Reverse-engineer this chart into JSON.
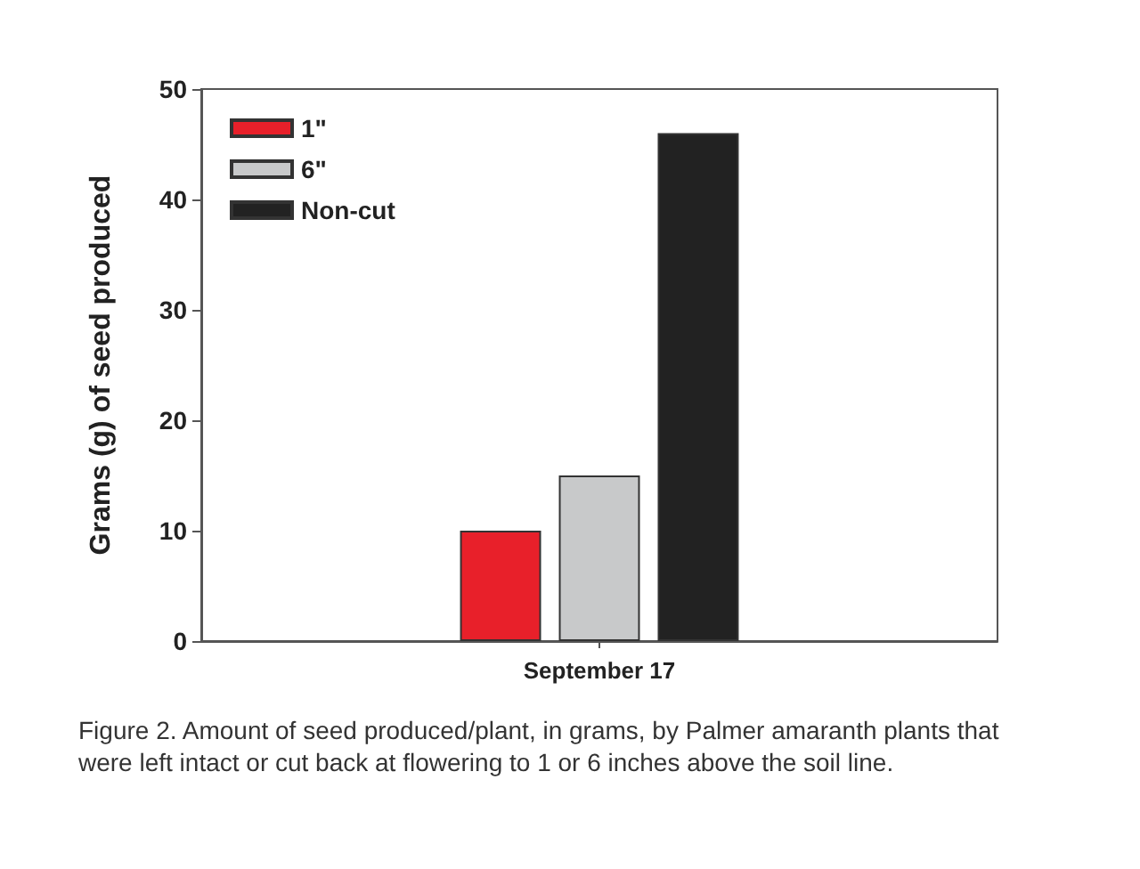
{
  "chart_data": {
    "type": "bar",
    "ylabel": "Grams (g) of seed produced",
    "categories": [
      "September 17"
    ],
    "series": [
      {
        "name": "1\"",
        "color": "#e8202a",
        "values": [
          10
        ]
      },
      {
        "name": "6\"",
        "color": "#c8c9ca",
        "values": [
          15
        ]
      },
      {
        "name": "Non-cut",
        "color": "#222222",
        "values": [
          46
        ]
      }
    ],
    "ylim": [
      0,
      50
    ],
    "yticks": [
      0,
      10,
      20,
      30,
      40,
      50
    ],
    "legend": "top left",
    "annotations": [
      "Figure 2. Amount of seed produced/plant, in grams, by Palmer amaranth plants that were left intact or cut back at flowering to 1 or 6 inches above the soil line."
    ]
  }
}
